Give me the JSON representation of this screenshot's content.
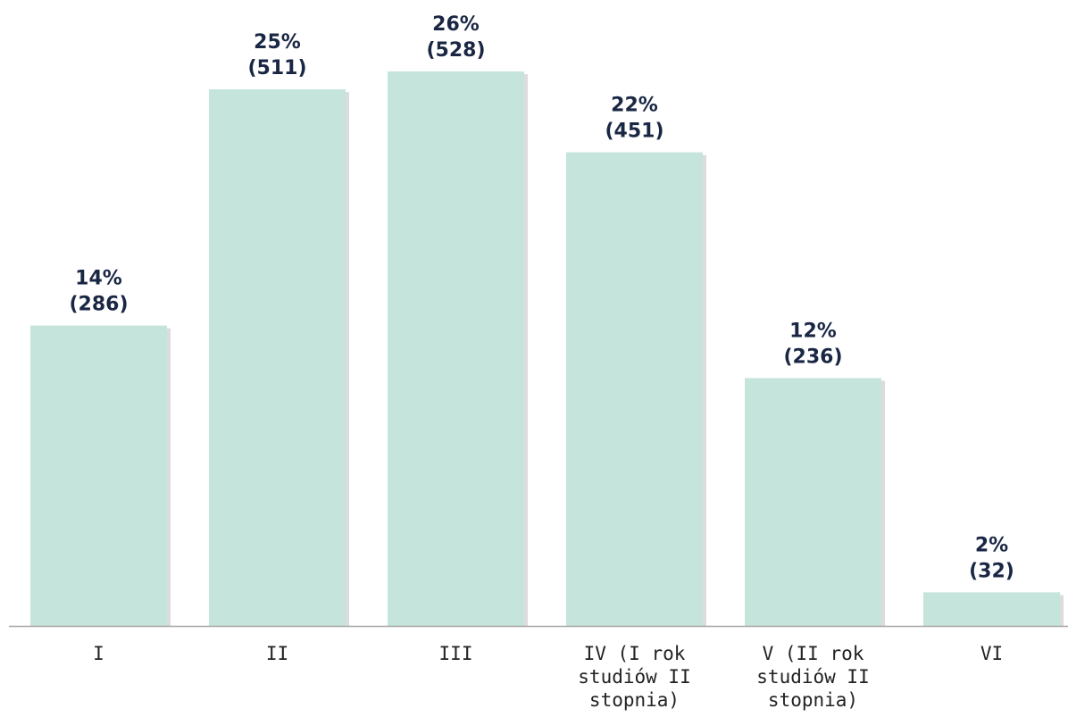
{
  "chart_data": {
    "type": "bar",
    "title": "",
    "xlabel": "",
    "ylabel": "",
    "ylim": [
      0,
      528
    ],
    "grid": false,
    "legend": "none",
    "bar_color": "#c5e5dc",
    "label_color": "#1a2744",
    "categories": [
      {
        "label_lines": [
          "I"
        ]
      },
      {
        "label_lines": [
          "II"
        ]
      },
      {
        "label_lines": [
          "III"
        ]
      },
      {
        "label_lines": [
          "IV (I rok",
          "studiów II",
          "stopnia)"
        ]
      },
      {
        "label_lines": [
          "V (II rok",
          "studiów II",
          "stopnia)"
        ]
      },
      {
        "label_lines": [
          "VI"
        ]
      }
    ],
    "values": [
      286,
      511,
      528,
      451,
      236,
      32
    ],
    "percent_labels": [
      "14%",
      "25%",
      "26%",
      "22%",
      "12%",
      "2%"
    ],
    "count_labels": [
      "(286)",
      "(511)",
      "(528)",
      "(451)",
      "(236)",
      "(32)"
    ]
  }
}
